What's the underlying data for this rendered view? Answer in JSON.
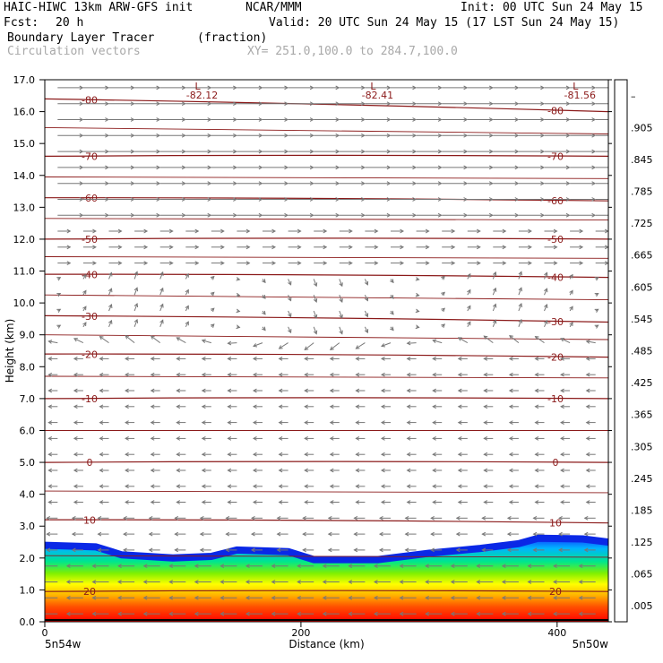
{
  "header": {
    "model": "HAIC-HIWC 13km ARW-GFS init",
    "org": "NCAR/MMM",
    "init": "Init: 00 UTC Sun 24 May 15",
    "fcst_label": "Fcst:",
    "fcst_value": "20 h",
    "valid": "Valid: 20 UTC Sun 24 May 15 (17 LST Sun 24 May 15)",
    "field_name": "Boundary Layer Tracer",
    "field_units": "(fraction)",
    "vector_label": "Circulation vectors",
    "xy_label": "XY= 251.0,100.0 to 284.7,100.0"
  },
  "chart_data": {
    "type": "heatmap",
    "ylabel": "Height (km)",
    "xlabel": "Distance (km)",
    "xlim": [
      0,
      440
    ],
    "ylim": [
      0,
      17
    ],
    "y_ticks": [
      "0.0",
      "1.0",
      "2.0",
      "3.0",
      "4.0",
      "5.0",
      "6.0",
      "7.0",
      "8.0",
      "9.0",
      "10.0",
      "11.0",
      "12.0",
      "13.0",
      "14.0",
      "15.0",
      "16.0",
      "17.0"
    ],
    "x_ticks": [
      {
        "value": 0,
        "label": "0"
      },
      {
        "value": 200,
        "label": "200"
      },
      {
        "value": 400,
        "label": "400"
      }
    ],
    "x_end_labels": {
      "left": "5n54w",
      "right": "5n50w"
    },
    "colorbar_ticks": [
      ".005",
      ".065",
      ".125",
      ".185",
      ".245",
      ".305",
      ".365",
      ".425",
      ".485",
      ".545",
      ".605",
      ".665",
      ".725",
      ".785",
      ".845",
      ".905",
      "–"
    ],
    "colorbar_colors": [
      "#ffffff",
      "#0000c8",
      "#0050ff",
      "#00b4ff",
      "#00ffe6",
      "#00e68c",
      "#00d200",
      "#50e600",
      "#b4f000",
      "#ffff00",
      "#ffdc00",
      "#ffb400",
      "#ff8c00",
      "#ff5a00",
      "#ff2800",
      "#ff0000",
      "#e60000"
    ],
    "tracer_top_km": [
      [
        0,
        2.4
      ],
      [
        40,
        2.35
      ],
      [
        60,
        2.1
      ],
      [
        100,
        2.0
      ],
      [
        130,
        2.05
      ],
      [
        150,
        2.25
      ],
      [
        190,
        2.2
      ],
      [
        210,
        1.95
      ],
      [
        260,
        1.95
      ],
      [
        300,
        2.15
      ],
      [
        340,
        2.3
      ],
      [
        370,
        2.45
      ],
      [
        385,
        2.62
      ],
      [
        420,
        2.6
      ],
      [
        440,
        2.5
      ]
    ],
    "isotherms": [
      {
        "label": "-80",
        "heights": [
          16.4,
          16.0
        ]
      },
      {
        "label": "-70",
        "heights": [
          14.6,
          14.6
        ]
      },
      {
        "label": "-60",
        "heights": [
          13.3,
          13.2
        ]
      },
      {
        "label": "-50",
        "heights": [
          12.0,
          12.0
        ]
      },
      {
        "label": "-40",
        "heights": [
          10.9,
          10.8
        ]
      },
      {
        "label": "-30",
        "heights": [
          9.6,
          9.4
        ]
      },
      {
        "label": "-20",
        "heights": [
          8.4,
          8.3
        ]
      },
      {
        "label": "-10",
        "heights": [
          7.0,
          7.0
        ]
      },
      {
        "label": "0",
        "heights": [
          5.0,
          5.0
        ]
      },
      {
        "label": "10",
        "heights": [
          3.2,
          3.1
        ]
      },
      {
        "label": "20",
        "heights": [
          0.95,
          0.95
        ]
      }
    ],
    "lows": [
      {
        "x": 120,
        "value": "-82.12"
      },
      {
        "x": 257,
        "value": "-82.41"
      },
      {
        "x": 415,
        "value": "-81.56"
      }
    ],
    "low_symbol": "L"
  }
}
